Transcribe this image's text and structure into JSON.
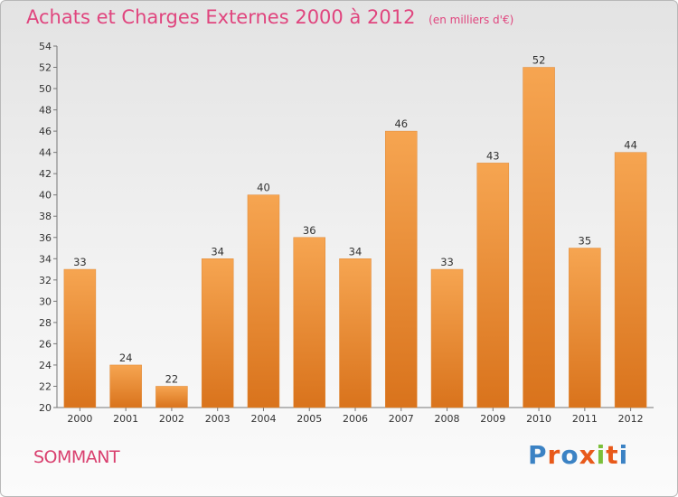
{
  "header": {
    "title": "Achats et Charges Externes 2000 à 2012",
    "unit": "(en milliers d'€)"
  },
  "footer": {
    "commune": "SOMMANT",
    "logo": [
      "P",
      "r",
      "o",
      "x",
      "i",
      "t",
      "i"
    ],
    "logo_colors": [
      "#3b82c4",
      "#e8591a",
      "#3b82c4",
      "#e8591a",
      "#7bbf3a",
      "#e8591a",
      "#3b82c4"
    ]
  },
  "colors": {
    "bar_top": "#f6a551",
    "bar_bottom": "#d9731c",
    "axis": "#777777"
  },
  "chart_data": {
    "type": "bar",
    "categories": [
      "2000",
      "2001",
      "2002",
      "2003",
      "2004",
      "2005",
      "2006",
      "2007",
      "2008",
      "2009",
      "2010",
      "2011",
      "2012"
    ],
    "values": [
      33,
      24,
      22,
      34,
      40,
      36,
      34,
      46,
      33,
      43,
      52,
      35,
      44
    ],
    "ylim": [
      20,
      54
    ],
    "yticks": [
      20,
      22,
      24,
      26,
      28,
      30,
      32,
      34,
      36,
      38,
      40,
      42,
      44,
      46,
      48,
      50,
      52,
      54
    ],
    "grid": false
  }
}
